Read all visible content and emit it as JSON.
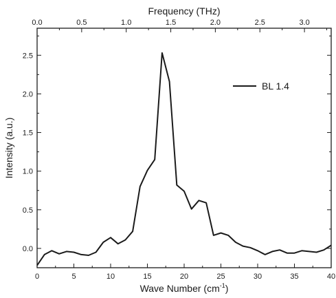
{
  "chart_data": {
    "type": "line",
    "title": "",
    "xlabel_top": "Frequency (THz)",
    "xlabel_bottom_main": "Wave Number (cm",
    "xlabel_bottom_sup": "-1",
    "xlabel_bottom_close": ")",
    "ylabel": "Intensity (a.u.)",
    "xlim": [
      0,
      40
    ],
    "ylim": [
      -0.25,
      2.85
    ],
    "top_xlim": [
      0,
      3.3
    ],
    "x_ticks": [
      0,
      5,
      10,
      15,
      20,
      25,
      30,
      35,
      40
    ],
    "x_tick_labels": [
      "0",
      "5",
      "10",
      "15",
      "20",
      "25",
      "30",
      "35",
      "40"
    ],
    "y_ticks": [
      0.0,
      0.5,
      1.0,
      1.5,
      2.0,
      2.5
    ],
    "y_tick_labels": [
      "0.0",
      "0.5",
      "1.0",
      "1.5",
      "2.0",
      "2.5"
    ],
    "top_ticks": [
      0.0,
      0.5,
      1.0,
      1.5,
      2.0,
      2.5,
      3.0
    ],
    "top_tick_labels": [
      "0.0",
      "0.5",
      "1.0",
      "1.5",
      "2.0",
      "2.5",
      "3.0"
    ],
    "grid": false,
    "legend_position": "top-right",
    "series": [
      {
        "name": "BL 1.4",
        "color": "#1a1a1a",
        "x": [
          0,
          1,
          2,
          3,
          4,
          5,
          6,
          7,
          8,
          9,
          10,
          11,
          12,
          13,
          14,
          15,
          16,
          17,
          18,
          19,
          20,
          21,
          22,
          23,
          24,
          25,
          26,
          27,
          28,
          29,
          30,
          31,
          32,
          33,
          34,
          35,
          36,
          37,
          38,
          39,
          40
        ],
        "y": [
          -0.22,
          -0.08,
          -0.03,
          -0.07,
          -0.04,
          -0.05,
          -0.08,
          -0.09,
          -0.05,
          0.08,
          0.14,
          0.06,
          0.11,
          0.22,
          0.8,
          1.01,
          1.15,
          2.53,
          2.16,
          0.82,
          0.74,
          0.51,
          0.62,
          0.59,
          0.17,
          0.2,
          0.17,
          0.08,
          0.03,
          0.01,
          -0.03,
          -0.08,
          -0.04,
          -0.02,
          -0.06,
          -0.06,
          -0.03,
          -0.04,
          -0.05,
          -0.02,
          0.04
        ]
      }
    ]
  }
}
